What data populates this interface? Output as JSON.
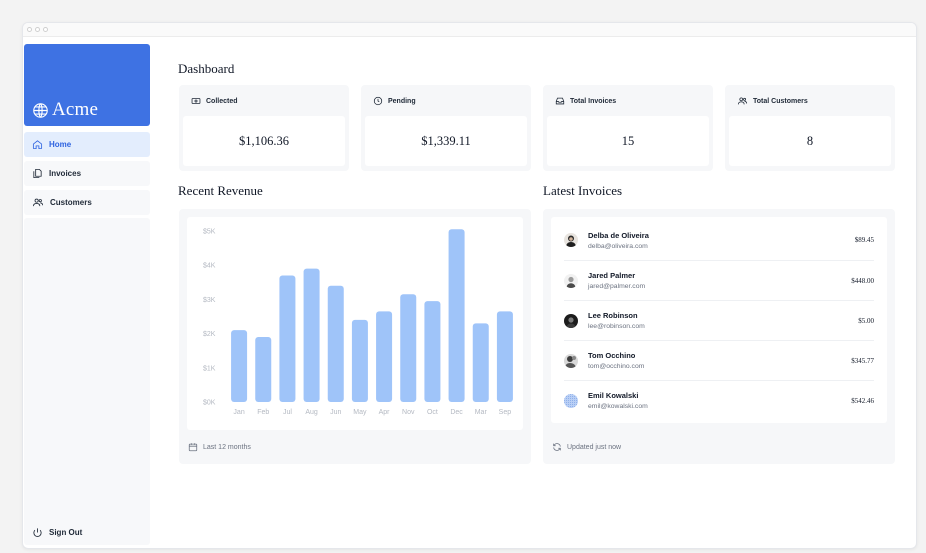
{
  "sidebar": {
    "logo": "Acme",
    "nav": [
      {
        "label": "Home",
        "icon": "home-icon",
        "active": true
      },
      {
        "label": "Invoices",
        "icon": "document-icon",
        "active": false
      },
      {
        "label": "Customers",
        "icon": "users-icon",
        "active": false
      }
    ],
    "signout": "Sign Out"
  },
  "page": {
    "title": "Dashboard"
  },
  "cards": [
    {
      "title": "Collected",
      "value": "$1,106.36",
      "icon": "banknote-icon"
    },
    {
      "title": "Pending",
      "value": "$1,339.11",
      "icon": "clock-icon"
    },
    {
      "title": "Total Invoices",
      "value": "15",
      "icon": "inbox-icon"
    },
    {
      "title": "Total Customers",
      "value": "8",
      "icon": "users-icon"
    }
  ],
  "revenue": {
    "title": "Recent Revenue",
    "footer": "Last 12 months"
  },
  "chart_data": {
    "type": "bar",
    "categories": [
      "Jan",
      "Feb",
      "Jul",
      "Aug",
      "Jun",
      "May",
      "Apr",
      "Nov",
      "Oct",
      "Dec",
      "Mar",
      "Sep"
    ],
    "values": [
      2100,
      1900,
      3700,
      3900,
      3400,
      2400,
      2650,
      3150,
      2950,
      5050,
      2300,
      2650
    ],
    "ylim": [
      0,
      5000
    ],
    "y_ticks": [
      "$0K",
      "$1K",
      "$2K",
      "$3K",
      "$4K",
      "$5K"
    ],
    "grid": false,
    "bar_color": "#9fc4f9"
  },
  "invoices": {
    "title": "Latest Invoices",
    "footer": "Updated just now",
    "items": [
      {
        "name": "Delba de Oliveira",
        "email": "delba@oliveira.com",
        "amount": "$89.45"
      },
      {
        "name": "Jared Palmer",
        "email": "jared@palmer.com",
        "amount": "$448.00"
      },
      {
        "name": "Lee Robinson",
        "email": "lee@robinson.com",
        "amount": "$5.00"
      },
      {
        "name": "Tom Occhino",
        "email": "tom@occhino.com",
        "amount": "$345.77"
      },
      {
        "name": "Emil Kowalski",
        "email": "emil@kowalski.com",
        "amount": "$542.46"
      }
    ]
  },
  "colors": {
    "accent": "#3e72e3",
    "active_bg": "#e3edfd",
    "active_text": "#2f64e0",
    "bar": "#9fc4f9"
  }
}
